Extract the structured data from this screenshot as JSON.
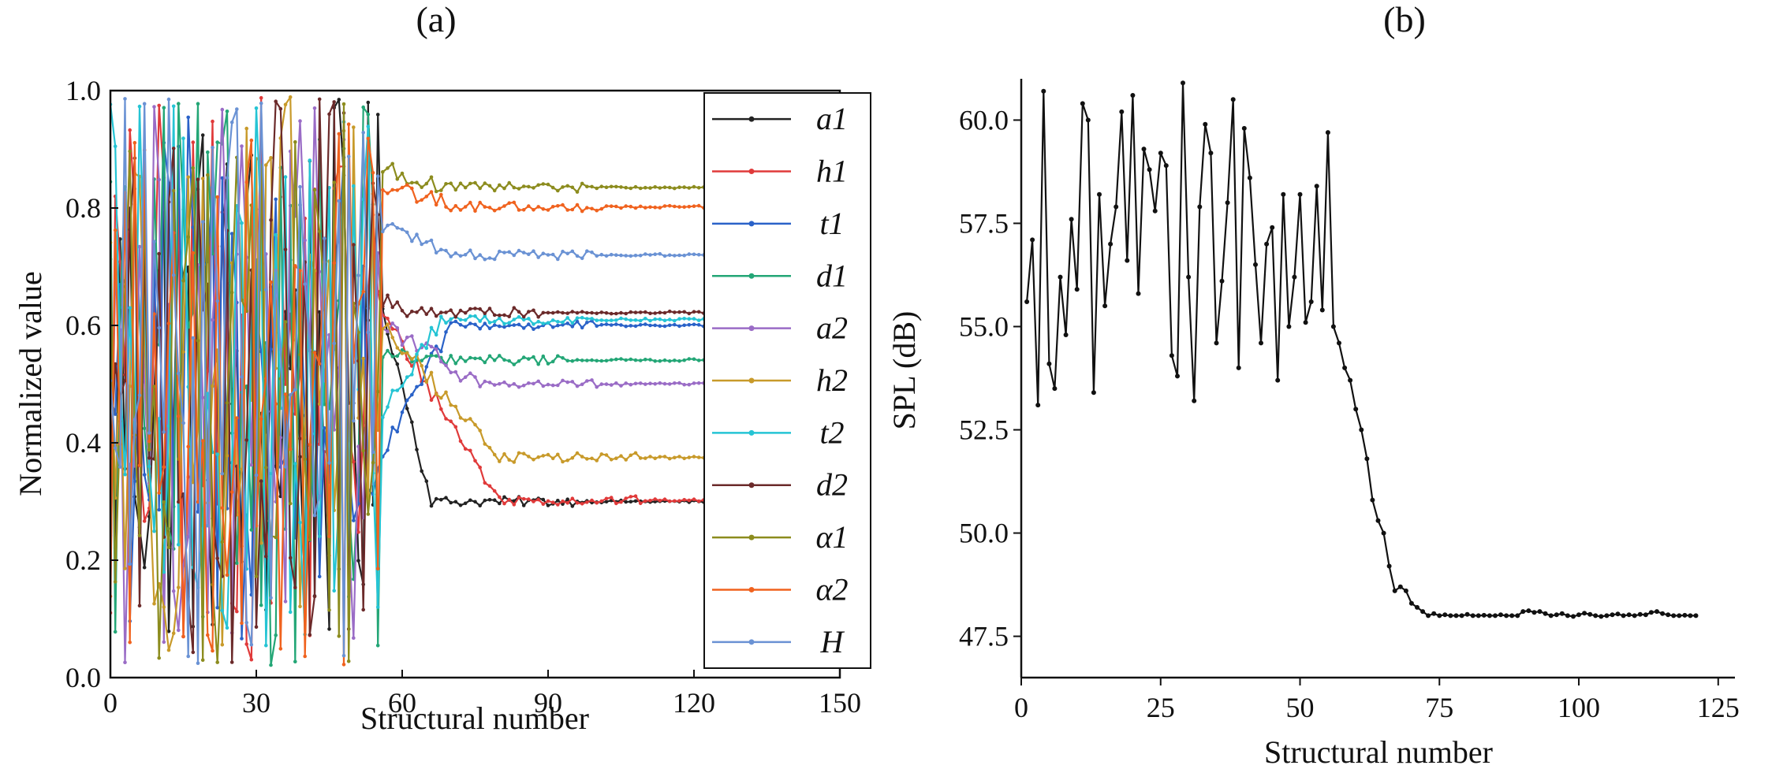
{
  "chart_data": [
    {
      "panel_label": "(a)",
      "type": "line",
      "xlabel": "Structural number",
      "ylabel": "Normalized value",
      "xlim": [
        0,
        150
      ],
      "ylim": [
        0,
        1.0
      ],
      "xticks": [
        0,
        30,
        60,
        90,
        120,
        150
      ],
      "yticks": [
        0.0,
        0.2,
        0.4,
        0.6,
        0.8,
        1.0
      ],
      "tick_labels_x": [
        "0",
        "30",
        "60",
        "90",
        "120",
        "150"
      ],
      "tick_labels_y": [
        "0.0",
        "0.2",
        "0.4",
        "0.6",
        "0.8",
        "1.0"
      ],
      "legend_position": "top-right",
      "random_phase_end": 55,
      "x_end": 122,
      "series": [
        {
          "name": "a1",
          "color": "#222222",
          "start": 0.63,
          "settle_at": 66,
          "final": 0.3
        },
        {
          "name": "h1",
          "color": "#e03a3a",
          "start": 0.62,
          "settle_at": 80,
          "final": 0.302
        },
        {
          "name": "t1",
          "color": "#2a62c8",
          "start": 0.38,
          "settle_at": 70,
          "final": 0.6
        },
        {
          "name": "d1",
          "color": "#23a676",
          "start": 0.55,
          "settle_at": 64,
          "final": 0.541
        },
        {
          "name": "a2",
          "color": "#9a6cc6",
          "start": 0.6,
          "settle_at": 76,
          "final": 0.5
        },
        {
          "name": "h2",
          "color": "#c89a2a",
          "start": 0.6,
          "settle_at": 80,
          "final": 0.375
        },
        {
          "name": "t2",
          "color": "#25c4d4",
          "start": 0.45,
          "settle_at": 68,
          "final": 0.61
        },
        {
          "name": "d2",
          "color": "#6b2a2a",
          "start": 0.64,
          "settle_at": 62,
          "final": 0.622
        },
        {
          "name": "α1",
          "color": "#8c8c1e",
          "start": 0.87,
          "settle_at": 68,
          "final": 0.835
        },
        {
          "name": "α2",
          "color": "#f0621e",
          "start": 0.84,
          "settle_at": 72,
          "final": 0.802
        },
        {
          "name": "H",
          "color": "#6a92d4",
          "start": 0.77,
          "settle_at": 70,
          "final": 0.72
        }
      ]
    },
    {
      "panel_label": "(b)",
      "type": "line",
      "xlabel": "Structural number",
      "ylabel": "SPL (dB)",
      "xlim": [
        0,
        128
      ],
      "ylim": [
        46.5,
        61.0
      ],
      "xticks": [
        0,
        25,
        50,
        75,
        100,
        125
      ],
      "yticks": [
        47.5,
        50.0,
        52.5,
        55.0,
        57.5,
        60.0
      ],
      "tick_labels_x": [
        "0",
        "25",
        "50",
        "75",
        "100",
        "125"
      ],
      "tick_labels_y": [
        "47.5",
        "50.0",
        "52.5",
        "55.0",
        "57.5",
        "60.0"
      ],
      "series": [
        {
          "name": "SPL",
          "color": "#111111",
          "x_start": 1,
          "values": [
            55.6,
            57.1,
            53.1,
            60.7,
            54.1,
            53.5,
            56.2,
            54.8,
            57.6,
            55.9,
            60.4,
            60.0,
            53.4,
            58.2,
            55.5,
            57.0,
            57.9,
            60.2,
            56.6,
            60.6,
            55.8,
            59.3,
            58.8,
            57.8,
            59.2,
            58.9,
            54.3,
            53.8,
            60.9,
            56.2,
            53.2,
            57.9,
            59.9,
            59.2,
            54.6,
            56.1,
            58.0,
            60.5,
            54.0,
            59.8,
            58.6,
            56.5,
            54.6,
            57.0,
            57.4,
            53.7,
            58.2,
            55.0,
            56.2,
            58.2,
            55.1,
            55.6,
            58.4,
            55.4,
            59.7,
            55.0,
            54.6,
            54.0,
            53.7,
            53.0,
            52.5,
            51.8,
            50.8,
            50.3,
            50.0,
            49.2,
            48.6,
            48.7,
            48.6,
            48.3,
            48.2,
            48.1,
            48.0,
            48.05,
            48.0,
            48.02,
            48.0,
            48.0,
            48.0,
            48.03,
            48.0,
            48.0,
            48.01,
            48.0,
            48.0,
            48.02,
            48.0,
            48.0,
            48.0,
            48.1,
            48.12,
            48.08,
            48.1,
            48.05,
            48.0,
            48.02,
            48.05,
            48.0,
            47.98,
            48.02,
            48.06,
            48.03,
            48.0,
            47.98,
            48.0,
            48.02,
            48.04,
            48.0,
            48.02,
            48.0,
            48.03,
            48.02,
            48.08,
            48.1,
            48.05,
            48.02,
            48.0,
            48.0,
            48.01,
            48.0,
            48.0
          ]
        }
      ]
    }
  ]
}
